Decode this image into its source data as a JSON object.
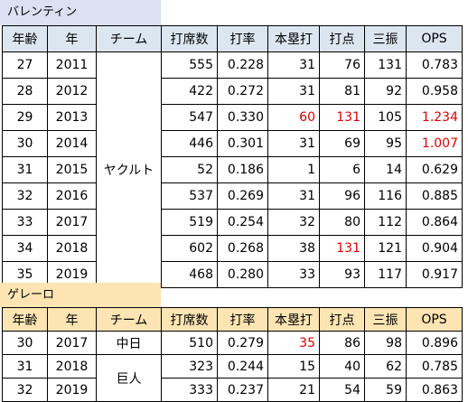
{
  "table1": {
    "title": "バレンティン",
    "headers": [
      "年齢",
      "年",
      "チーム",
      "打席数",
      "打率",
      "本塁打",
      "打点",
      "三振",
      "OPS"
    ],
    "team": "ヤクルト",
    "rows": [
      {
        "age": "27",
        "year": "2011",
        "pa": "555",
        "avg": "0.228",
        "hr": "31",
        "rbi": "76",
        "so": "131",
        "ops": "0.783"
      },
      {
        "age": "28",
        "year": "2012",
        "pa": "422",
        "avg": "0.272",
        "hr": "31",
        "rbi": "81",
        "so": "92",
        "ops": "0.958"
      },
      {
        "age": "29",
        "year": "2013",
        "pa": "547",
        "avg": "0.330",
        "hr": "60",
        "rbi": "131",
        "so": "105",
        "ops": "1.234"
      },
      {
        "age": "30",
        "year": "2014",
        "pa": "446",
        "avg": "0.301",
        "hr": "31",
        "rbi": "69",
        "so": "95",
        "ops": "1.007"
      },
      {
        "age": "31",
        "year": "2015",
        "pa": "52",
        "avg": "0.186",
        "hr": "1",
        "rbi": "6",
        "so": "14",
        "ops": "0.629"
      },
      {
        "age": "32",
        "year": "2016",
        "pa": "537",
        "avg": "0.269",
        "hr": "31",
        "rbi": "96",
        "so": "116",
        "ops": "0.885"
      },
      {
        "age": "33",
        "year": "2017",
        "pa": "519",
        "avg": "0.254",
        "hr": "32",
        "rbi": "80",
        "so": "112",
        "ops": "0.864"
      },
      {
        "age": "34",
        "year": "2018",
        "pa": "602",
        "avg": "0.268",
        "hr": "38",
        "rbi": "131",
        "so": "121",
        "ops": "0.904"
      },
      {
        "age": "35",
        "year": "2019",
        "pa": "468",
        "avg": "0.280",
        "hr": "33",
        "rbi": "93",
        "so": "117",
        "ops": "0.917"
      }
    ]
  },
  "table2": {
    "title": "ゲレーロ",
    "headers": [
      "年齢",
      "年",
      "チーム",
      "打席数",
      "打率",
      "本塁打",
      "打点",
      "三振",
      "OPS"
    ],
    "team_chunichi": "中日",
    "team_giants": "巨人",
    "rows": [
      {
        "age": "30",
        "year": "2017",
        "pa": "510",
        "avg": "0.279",
        "hr": "35",
        "rbi": "86",
        "so": "98",
        "ops": "0.896"
      },
      {
        "age": "31",
        "year": "2018",
        "pa": "323",
        "avg": "0.244",
        "hr": "15",
        "rbi": "40",
        "so": "62",
        "ops": "0.785"
      },
      {
        "age": "32",
        "year": "2019",
        "pa": "333",
        "avg": "0.237",
        "hr": "21",
        "rbi": "54",
        "so": "59",
        "ops": "0.863"
      }
    ]
  },
  "colors": {
    "highlight": "#e00000",
    "header1": "#dce6f1",
    "header2": "#fce4b3"
  }
}
